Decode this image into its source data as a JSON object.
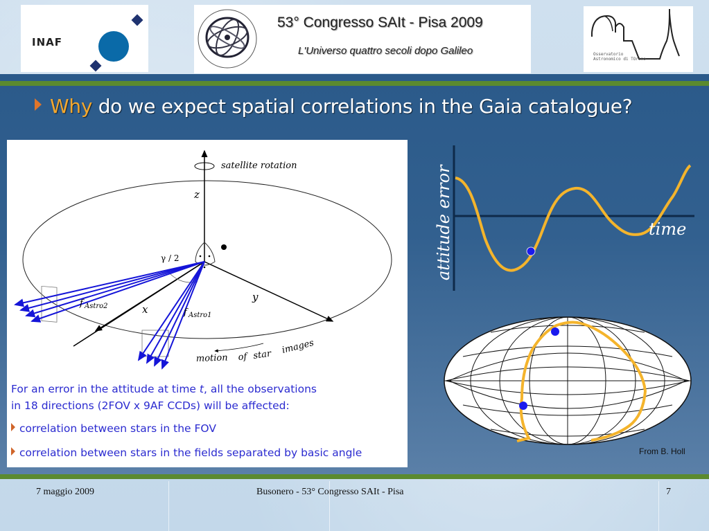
{
  "header": {
    "inaf_logo_text": "INAF",
    "congress_title": "53° Congresso SAIt - Pisa 2009",
    "congress_subtitle": "L'Universo quattro secoli dopo Galileo",
    "sait_seal_text": "Società Astronomica Italiana 1871 Società degli Spettroscopisti",
    "oato_logo_text": "Osservatorio Astronomico di TOrino"
  },
  "slide": {
    "title_highlight": "Why",
    "title_rest": " do we expect spatial correlations in the Gaia catalogue?",
    "diagram": {
      "satellite_rotation": "satellite rotation",
      "z": "z",
      "x": "x",
      "y": "y",
      "gamma": "γ / 2",
      "f_astro1": "f",
      "astro1_sub": "Astro1",
      "f_astro2": "f",
      "astro2_sub": "Astro2",
      "motion_word1": "motion",
      "motion_word2": "of",
      "motion_word3": "star",
      "motion_word4": "images"
    },
    "description_line1_pre": "For an error in the attitude at time ",
    "description_t": "t",
    "description_line1_post": ", all the observations",
    "description_line2": "in 18 directions (2FOV x 9AF CCDs) will be affected:",
    "bullets": [
      "correlation between stars in the FOV",
      "correlation between stars in the fields separated by basic angle"
    ],
    "plot": {
      "ylabel": "attitude error",
      "xlabel": "time",
      "curve_color": "#f4b42c",
      "marker_color": "#1a1aee"
    },
    "credit": "From B. Holl"
  },
  "footer": {
    "date": "7 maggio 2009",
    "center": "Busonero  -  53° Congresso SAIt - Pisa",
    "page": "7"
  }
}
